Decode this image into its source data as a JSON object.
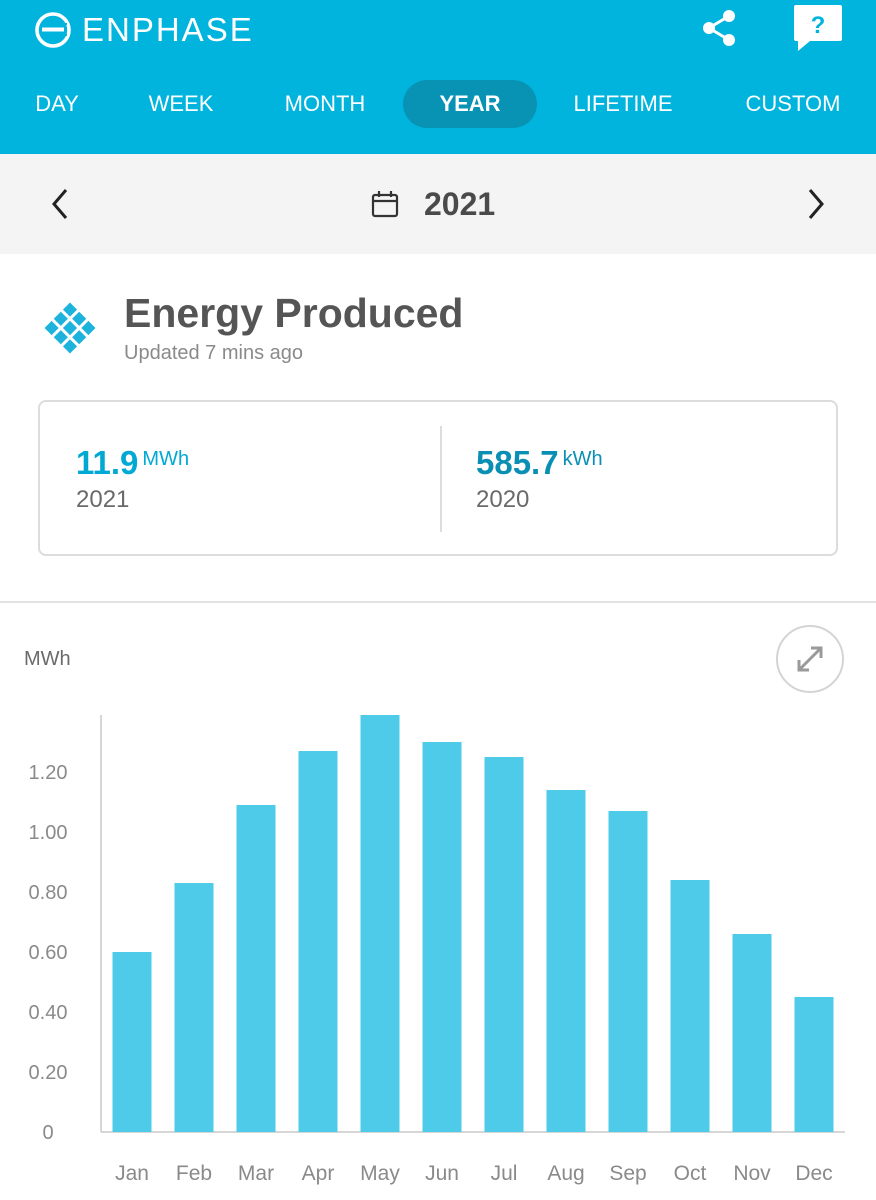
{
  "app": {
    "brand": "ENPHASE",
    "brand_icon": "enphase-logo",
    "share_icon": "share-icon",
    "help_glyph": "?",
    "accent_color": "#00b4dd"
  },
  "tabs": [
    {
      "label": "DAY",
      "active": false
    },
    {
      "label": "WEEK",
      "active": false
    },
    {
      "label": "MONTH",
      "active": false
    },
    {
      "label": "YEAR",
      "active": true
    },
    {
      "label": "LIFETIME",
      "active": false
    },
    {
      "label": "CUSTOM",
      "active": false
    }
  ],
  "date_nav": {
    "selected": "2021",
    "prev_icon": "chevron-left-icon",
    "next_icon": "chevron-right-icon",
    "calendar_icon": "calendar-icon"
  },
  "panel": {
    "title": "Energy Produced",
    "subtitle": "Updated 7 mins ago",
    "icon": "solar-panel-icon"
  },
  "summary": {
    "current": {
      "value": "11.9",
      "unit": "MWh",
      "label": "2021"
    },
    "previous": {
      "value": "585.7",
      "unit": "kWh",
      "label": "2020"
    }
  },
  "chart_unit": "MWh",
  "chart_data": {
    "type": "bar",
    "categories": [
      "Jan",
      "Feb",
      "Mar",
      "Apr",
      "May",
      "Jun",
      "Jul",
      "Aug",
      "Sep",
      "Oct",
      "Nov",
      "Dec"
    ],
    "values": [
      0.6,
      0.83,
      1.09,
      1.27,
      1.39,
      1.3,
      1.25,
      1.14,
      1.07,
      0.84,
      0.66,
      0.45
    ],
    "title": "",
    "xlabel": "",
    "ylabel": "MWh",
    "ylim": [
      0,
      1.39
    ],
    "yticks": [
      "0",
      "0.20",
      "0.40",
      "0.60",
      "0.80",
      "1.00",
      "1.20"
    ],
    "ytick_values": [
      0,
      0.2,
      0.4,
      0.6,
      0.8,
      1.0,
      1.2
    ],
    "bar_color": "#4ecbe8",
    "grid": false
  }
}
